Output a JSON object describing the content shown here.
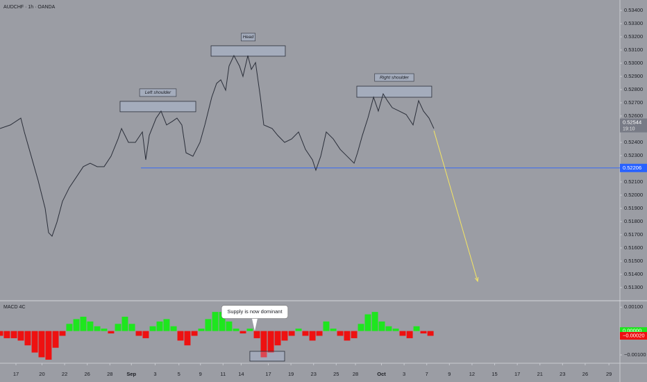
{
  "chart_data": [
    {
      "type": "line",
      "title": "AUDCHF · 1h · OANDA",
      "color": "#2a2e39",
      "x": [
        -1.41,
        -0.49,
        0.43,
        0.74,
        1.35,
        1.96,
        2.58,
        2.88,
        3.19,
        3.62,
        4.11,
        4.72,
        5.34,
        5.95,
        6.56,
        7.18,
        7.79,
        8.4,
        9.02,
        9.33,
        9.94,
        10.55,
        11.17,
        11.47,
        11.78,
        12.39,
        12.82,
        13.31,
        13.8,
        14.23,
        14.66,
        15.03,
        15.64,
        16.26,
        16.69,
        17.3,
        17.73,
        18.1,
        18.53,
        18.83,
        19.26,
        19.75,
        20.06,
        20.49,
        20.8,
        21.17,
        21.6,
        21.9,
        22.64,
        23.13,
        23.74,
        24.36,
        24.97,
        25.58,
        26.2,
        26.5,
        26.93,
        27.42,
        28.04,
        28.65,
        29.26,
        29.88,
        30.18,
        30.61,
        31.1,
        31.6,
        32.02,
        32.45,
        32.82,
        33.25,
        33.87,
        34.48,
        35.09,
        35.58,
        36.01,
        36.5,
        36.93
      ],
      "values": [
        0.52505,
        0.52532,
        0.52584,
        0.52479,
        0.52295,
        0.52111,
        0.519,
        0.51716,
        0.51689,
        0.51795,
        0.51953,
        0.52058,
        0.52137,
        0.52216,
        0.52242,
        0.52216,
        0.52216,
        0.52295,
        0.52426,
        0.52505,
        0.524,
        0.524,
        0.52479,
        0.52268,
        0.52453,
        0.52584,
        0.52637,
        0.52532,
        0.52558,
        0.52584,
        0.52532,
        0.52321,
        0.52295,
        0.524,
        0.52532,
        0.52742,
        0.52847,
        0.52874,
        0.52795,
        0.52979,
        0.53058,
        0.52979,
        0.529,
        0.53058,
        0.52953,
        0.53005,
        0.52742,
        0.52532,
        0.52505,
        0.52453,
        0.524,
        0.52426,
        0.52479,
        0.52347,
        0.52268,
        0.52189,
        0.52295,
        0.52479,
        0.52426,
        0.52347,
        0.52295,
        0.52242,
        0.52321,
        0.52453,
        0.52584,
        0.52742,
        0.52637,
        0.52768,
        0.52716,
        0.52663,
        0.52637,
        0.52611,
        0.52532,
        0.52716,
        0.52637,
        0.52584,
        0.52505
      ],
      "xlim": [
        -1.41,
        53.37
      ],
      "ylim": [
        0.51205,
        0.53479
      ],
      "xticks": [
        {
          "value": 0,
          "label": "17"
        },
        {
          "value": 2.3,
          "label": "20"
        },
        {
          "value": 4.3,
          "label": "22"
        },
        {
          "value": 6.3,
          "label": "26"
        },
        {
          "value": 8.3,
          "label": "28"
        },
        {
          "value": 10.2,
          "label": "Sep"
        },
        {
          "value": 12.3,
          "label": "3"
        },
        {
          "value": 14.4,
          "label": "5"
        },
        {
          "value": 16.3,
          "label": "9"
        },
        {
          "value": 18.3,
          "label": "11"
        },
        {
          "value": 19.9,
          "label": "14"
        },
        {
          "value": 22.3,
          "label": "17"
        },
        {
          "value": 24.3,
          "label": "19"
        },
        {
          "value": 26.3,
          "label": "23"
        },
        {
          "value": 28.3,
          "label": "25"
        },
        {
          "value": 30.0,
          "label": "28"
        },
        {
          "value": 32.3,
          "label": "Oct"
        },
        {
          "value": 34.3,
          "label": "3"
        },
        {
          "value": 36.3,
          "label": "7"
        },
        {
          "value": 38.3,
          "label": "9"
        },
        {
          "value": 40.3,
          "label": "12"
        },
        {
          "value": 42.3,
          "label": "15"
        },
        {
          "value": 44.3,
          "label": "17"
        },
        {
          "value": 46.3,
          "label": "21"
        },
        {
          "value": 48.3,
          "label": "23"
        },
        {
          "value": 50.3,
          "label": "26"
        },
        {
          "value": 52.4,
          "label": "29"
        }
      ],
      "yticks": [
        {
          "value": 0.534,
          "label": "0.53400"
        },
        {
          "value": 0.533,
          "label": "0.53300"
        },
        {
          "value": 0.532,
          "label": "0.53200"
        },
        {
          "value": 0.531,
          "label": "0.53100"
        },
        {
          "value": 0.53,
          "label": "0.53000"
        },
        {
          "value": 0.529,
          "label": "0.52900"
        },
        {
          "value": 0.528,
          "label": "0.52800"
        },
        {
          "value": 0.527,
          "label": "0.52700"
        },
        {
          "value": 0.526,
          "label": "0.52600"
        },
        {
          "value": 0.524,
          "label": "0.52400"
        },
        {
          "value": 0.523,
          "label": "0.52300"
        },
        {
          "value": 0.521,
          "label": "0.52100"
        },
        {
          "value": 0.52,
          "label": "0.52000"
        },
        {
          "value": 0.519,
          "label": "0.51900"
        },
        {
          "value": 0.518,
          "label": "0.51800"
        },
        {
          "value": 0.517,
          "label": "0.51700"
        },
        {
          "value": 0.516,
          "label": "0.51600"
        },
        {
          "value": 0.515,
          "label": "0.51500"
        },
        {
          "value": 0.514,
          "label": "0.51400"
        },
        {
          "value": 0.513,
          "label": "0.51300"
        }
      ],
      "zones": [
        {
          "label": "Left shoulder",
          "x": [
            9.2,
            15.89
          ],
          "y": [
            0.52632,
            0.52711
          ]
        },
        {
          "label": "Head",
          "x": [
            17.24,
            23.8
          ],
          "y": [
            0.53053,
            0.53132
          ]
        },
        {
          "label": "Right shoulder",
          "x": [
            30.12,
            36.74
          ],
          "y": [
            0.52742,
            0.52826
          ]
        }
      ],
      "level": {
        "value": 0.52206,
        "label": "0.52206",
        "x_start": 11.04,
        "color": "#2962ff"
      },
      "last_price": {
        "value": 0.52544,
        "label": "0.52544",
        "time": "19:10"
      },
      "arrow": {
        "x": [
          36.93,
          40.8
        ],
        "y": [
          0.52489,
          0.51347
        ],
        "color": "#f5e663"
      }
    },
    {
      "type": "bar",
      "title": "MACD 4C",
      "positive_color": "#1ee61e",
      "negative_color": "#ee1111",
      "x": [
        -1.41,
        -0.8,
        -0.18,
        0.43,
        1.04,
        1.66,
        2.27,
        2.88,
        3.5,
        4.11,
        4.72,
        5.34,
        5.95,
        6.56,
        7.18,
        7.79,
        8.4,
        9.02,
        9.63,
        10.25,
        10.86,
        11.47,
        12.09,
        12.7,
        13.31,
        13.93,
        14.54,
        15.15,
        15.77,
        16.38,
        16.99,
        17.61,
        18.22,
        18.83,
        19.45,
        20.06,
        20.67,
        21.29,
        21.9,
        22.52,
        23.13,
        23.74,
        24.36,
        24.97,
        25.58,
        26.2,
        26.81,
        27.42,
        28.04,
        28.65,
        29.26,
        29.88,
        30.49,
        31.1,
        31.72,
        32.33,
        32.94,
        33.56,
        34.17,
        34.79,
        35.4,
        36.01,
        36.63
      ],
      "values": [
        -0.0002,
        -0.0003,
        -0.0003,
        -0.0004,
        -0.0006,
        -0.0009,
        -0.0011,
        -0.0012,
        -0.0007,
        -0.0002,
        0.0003,
        0.0005,
        0.0006,
        0.0004,
        0.0002,
        0.0001,
        -0.0001,
        0.0003,
        0.0006,
        0.0003,
        -0.0002,
        -0.0003,
        0.0002,
        0.0004,
        0.0005,
        0.0002,
        -0.0004,
        -0.0006,
        -0.0002,
        0.0001,
        0.0005,
        0.0008,
        0.0008,
        0.0004,
        0.0001,
        -0.0001,
        0.0001,
        -0.0003,
        -0.0011,
        -0.0009,
        -0.0006,
        -0.0004,
        -0.0002,
        0.0001,
        -0.0002,
        -0.0004,
        -0.0002,
        0.0004,
        0.0001,
        -0.0002,
        -0.0004,
        -0.0003,
        0.0003,
        0.0007,
        0.0008,
        0.0004,
        0.0002,
        0.0001,
        -0.0002,
        -0.0003,
        0.0002,
        -0.0001,
        -0.0002
      ],
      "ylim": [
        -0.00132,
        0.00124
      ],
      "yticks": [
        {
          "value": 0.001,
          "label": "0.00100"
        },
        {
          "value": -0.001,
          "label": "−0.00100"
        }
      ],
      "markers": [
        {
          "value": 0,
          "label": "0.00000",
          "color": "#1ee61e"
        },
        {
          "value": -0.0002,
          "label": "−0.00020",
          "color": "#ee1111"
        }
      ],
      "callout": {
        "text": "Supply is now dominant",
        "x": 21.1,
        "y": 0
      },
      "zone": {
        "x": [
          20.67,
          23.74
        ],
        "y": [
          -0.00126,
          -0.00085
        ]
      }
    }
  ]
}
